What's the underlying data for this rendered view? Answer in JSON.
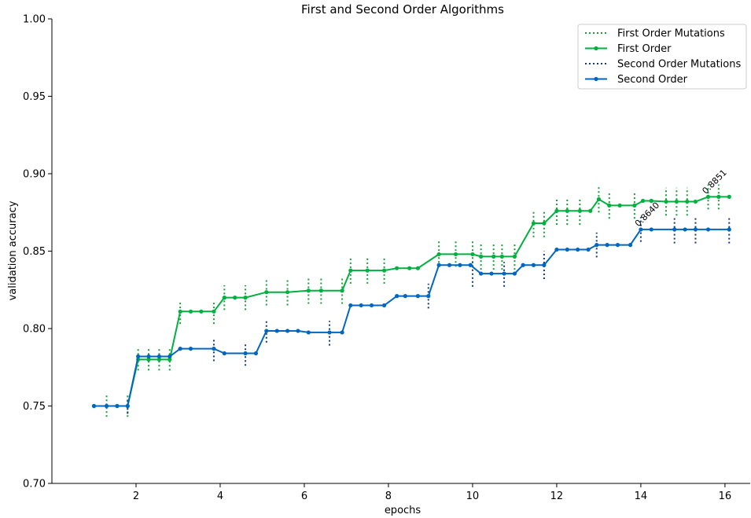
{
  "chart_data": {
    "type": "line",
    "title": "First and Second Order Algorithms",
    "xlabel": "epochs",
    "ylabel": "validation accuracy",
    "xlim": [
      0.0,
      16.6
    ],
    "ylim": [
      0.7,
      1.0
    ],
    "xticks": [
      2,
      4,
      6,
      8,
      10,
      12,
      14,
      16
    ],
    "xtick_labels": [
      "2",
      "4",
      "6",
      "8",
      "10",
      "12",
      "14",
      "16"
    ],
    "yticks": [
      0.7,
      0.75,
      0.8,
      0.85,
      0.9,
      0.95,
      1.0
    ],
    "ytick_labels": [
      "0.70",
      "0.75",
      "0.80",
      "0.85",
      "0.90",
      "0.95",
      "1.00"
    ],
    "grid": false,
    "legend_position": "top-right",
    "colors": {
      "first": "#00b140",
      "second": "#0066c0"
    },
    "legend": [
      {
        "label": "First Order Mutations",
        "style": "dotted",
        "series": "first"
      },
      {
        "label": "First Order",
        "style": "line-marker",
        "series": "first"
      },
      {
        "label": "Second Order Mutations",
        "style": "dotted",
        "series": "second"
      },
      {
        "label": "Second Order",
        "style": "line-marker",
        "series": "second"
      }
    ],
    "series": [
      {
        "name": "First Order",
        "color": "#00b140",
        "points": [
          [
            1.0,
            0.75
          ],
          [
            1.3,
            0.75
          ],
          [
            1.55,
            0.75
          ],
          [
            1.8,
            0.75
          ],
          [
            2.05,
            0.78
          ],
          [
            2.3,
            0.78
          ],
          [
            2.55,
            0.78
          ],
          [
            2.8,
            0.78
          ],
          [
            3.05,
            0.811
          ],
          [
            3.3,
            0.811
          ],
          [
            3.55,
            0.811
          ],
          [
            3.85,
            0.811
          ],
          [
            4.1,
            0.82
          ],
          [
            4.35,
            0.82
          ],
          [
            4.6,
            0.82
          ],
          [
            5.1,
            0.8235
          ],
          [
            5.6,
            0.8235
          ],
          [
            6.1,
            0.8245
          ],
          [
            6.4,
            0.8245
          ],
          [
            6.9,
            0.8245
          ],
          [
            7.1,
            0.8375
          ],
          [
            7.5,
            0.8375
          ],
          [
            7.9,
            0.8375
          ],
          [
            8.2,
            0.839
          ],
          [
            8.5,
            0.839
          ],
          [
            8.7,
            0.839
          ],
          [
            9.2,
            0.848
          ],
          [
            9.6,
            0.848
          ],
          [
            10.0,
            0.848
          ],
          [
            10.2,
            0.8465
          ],
          [
            10.5,
            0.8465
          ],
          [
            10.7,
            0.8465
          ],
          [
            11.0,
            0.8465
          ],
          [
            11.45,
            0.868
          ],
          [
            11.7,
            0.868
          ],
          [
            12.0,
            0.876
          ],
          [
            12.25,
            0.876
          ],
          [
            12.55,
            0.876
          ],
          [
            12.8,
            0.876
          ],
          [
            13.0,
            0.8835
          ],
          [
            13.25,
            0.8795
          ],
          [
            13.5,
            0.8795
          ],
          [
            13.85,
            0.8795
          ],
          [
            14.05,
            0.8825
          ],
          [
            14.25,
            0.8825
          ],
          [
            14.6,
            0.882
          ],
          [
            14.85,
            0.882
          ],
          [
            15.1,
            0.882
          ],
          [
            15.3,
            0.882
          ],
          [
            15.6,
            0.8851
          ],
          [
            15.85,
            0.8851
          ],
          [
            16.1,
            0.8851
          ]
        ],
        "mutations": [
          [
            1.3,
            0.743,
            0.757
          ],
          [
            1.8,
            0.743,
            0.757
          ],
          [
            2.05,
            0.773,
            0.787
          ],
          [
            2.3,
            0.773,
            0.787
          ],
          [
            2.55,
            0.773,
            0.787
          ],
          [
            2.8,
            0.773,
            0.787
          ],
          [
            3.05,
            0.803,
            0.818
          ],
          [
            3.85,
            0.803,
            0.818
          ],
          [
            4.1,
            0.812,
            0.828
          ],
          [
            4.6,
            0.812,
            0.828
          ],
          [
            5.1,
            0.815,
            0.832
          ],
          [
            5.6,
            0.815,
            0.832
          ],
          [
            6.1,
            0.816,
            0.833
          ],
          [
            6.4,
            0.816,
            0.833
          ],
          [
            6.9,
            0.816,
            0.833
          ],
          [
            7.1,
            0.829,
            0.846
          ],
          [
            7.5,
            0.829,
            0.846
          ],
          [
            7.9,
            0.829,
            0.846
          ],
          [
            9.2,
            0.84,
            0.857
          ],
          [
            9.6,
            0.84,
            0.857
          ],
          [
            10.0,
            0.84,
            0.857
          ],
          [
            10.2,
            0.838,
            0.855
          ],
          [
            10.5,
            0.838,
            0.855
          ],
          [
            10.7,
            0.838,
            0.855
          ],
          [
            11.0,
            0.838,
            0.855
          ],
          [
            11.45,
            0.859,
            0.876
          ],
          [
            11.7,
            0.859,
            0.876
          ],
          [
            12.0,
            0.867,
            0.884
          ],
          [
            12.25,
            0.867,
            0.884
          ],
          [
            12.55,
            0.867,
            0.884
          ],
          [
            13.0,
            0.875,
            0.892
          ],
          [
            13.25,
            0.871,
            0.888
          ],
          [
            13.85,
            0.871,
            0.888
          ],
          [
            14.6,
            0.873,
            0.891
          ],
          [
            14.85,
            0.873,
            0.891
          ],
          [
            15.1,
            0.873,
            0.891
          ],
          [
            15.6,
            0.877,
            0.893
          ],
          [
            15.85,
            0.877,
            0.893
          ]
        ]
      },
      {
        "name": "Second Order",
        "color": "#0066c0",
        "points": [
          [
            1.0,
            0.75
          ],
          [
            1.3,
            0.75
          ],
          [
            1.55,
            0.75
          ],
          [
            1.8,
            0.75
          ],
          [
            2.05,
            0.782
          ],
          [
            2.3,
            0.782
          ],
          [
            2.55,
            0.782
          ],
          [
            2.8,
            0.782
          ],
          [
            3.05,
            0.787
          ],
          [
            3.3,
            0.787
          ],
          [
            3.85,
            0.787
          ],
          [
            4.1,
            0.784
          ],
          [
            4.6,
            0.784
          ],
          [
            4.85,
            0.784
          ],
          [
            5.1,
            0.7985
          ],
          [
            5.35,
            0.7985
          ],
          [
            5.6,
            0.7985
          ],
          [
            5.85,
            0.7985
          ],
          [
            6.1,
            0.7975
          ],
          [
            6.6,
            0.7975
          ],
          [
            6.9,
            0.7975
          ],
          [
            7.1,
            0.815
          ],
          [
            7.35,
            0.815
          ],
          [
            7.6,
            0.815
          ],
          [
            7.9,
            0.815
          ],
          [
            8.2,
            0.821
          ],
          [
            8.4,
            0.821
          ],
          [
            8.7,
            0.821
          ],
          [
            8.95,
            0.821
          ],
          [
            9.2,
            0.841
          ],
          [
            9.45,
            0.841
          ],
          [
            9.7,
            0.841
          ],
          [
            9.95,
            0.841
          ],
          [
            10.2,
            0.8355
          ],
          [
            10.45,
            0.8355
          ],
          [
            10.75,
            0.8355
          ],
          [
            11.0,
            0.8355
          ],
          [
            11.2,
            0.841
          ],
          [
            11.45,
            0.841
          ],
          [
            11.7,
            0.841
          ],
          [
            12.0,
            0.851
          ],
          [
            12.25,
            0.851
          ],
          [
            12.5,
            0.851
          ],
          [
            12.75,
            0.851
          ],
          [
            12.95,
            0.854
          ],
          [
            13.2,
            0.854
          ],
          [
            13.45,
            0.854
          ],
          [
            13.75,
            0.854
          ],
          [
            14.0,
            0.864
          ],
          [
            14.25,
            0.864
          ],
          [
            14.8,
            0.864
          ],
          [
            15.05,
            0.864
          ],
          [
            15.3,
            0.864
          ],
          [
            15.6,
            0.864
          ],
          [
            16.1,
            0.864
          ]
        ],
        "mutations": [
          [
            1.8,
            0.745,
            0.755
          ],
          [
            3.85,
            0.779,
            0.794
          ],
          [
            4.6,
            0.776,
            0.791
          ],
          [
            5.1,
            0.791,
            0.806
          ],
          [
            6.6,
            0.789,
            0.805
          ],
          [
            8.95,
            0.813,
            0.829
          ],
          [
            10.0,
            0.827,
            0.843
          ],
          [
            10.75,
            0.827,
            0.843
          ],
          [
            11.7,
            0.832,
            0.85
          ],
          [
            12.95,
            0.846,
            0.862
          ],
          [
            14.0,
            0.856,
            0.872
          ],
          [
            14.8,
            0.855,
            0.872
          ],
          [
            15.3,
            0.855,
            0.872
          ],
          [
            16.1,
            0.855,
            0.872
          ]
        ]
      }
    ],
    "annotations": [
      {
        "text": "0.8640",
        "x": 14.0,
        "y": 0.864,
        "series": "second"
      },
      {
        "text": "0.8851",
        "x": 15.6,
        "y": 0.8851,
        "series": "first"
      }
    ]
  }
}
